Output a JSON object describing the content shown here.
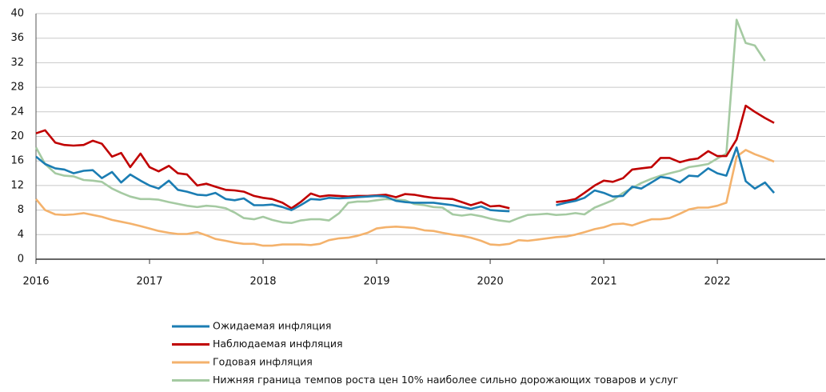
{
  "chart_data": {
    "type": "line",
    "x": [
      2016,
      2016.08,
      2016.17,
      2016.25,
      2016.33,
      2016.42,
      2016.5,
      2016.58,
      2016.67,
      2016.75,
      2016.83,
      2016.92,
      2017,
      2017.08,
      2017.17,
      2017.25,
      2017.33,
      2017.42,
      2017.5,
      2017.58,
      2017.67,
      2017.75,
      2017.83,
      2017.92,
      2018,
      2018.08,
      2018.17,
      2018.25,
      2018.33,
      2018.42,
      2018.5,
      2018.58,
      2018.67,
      2018.75,
      2018.83,
      2018.92,
      2019,
      2019.08,
      2019.17,
      2019.25,
      2019.33,
      2019.42,
      2019.5,
      2019.58,
      2019.67,
      2019.75,
      2019.83,
      2019.92,
      2020,
      2020.08,
      2020.17,
      2020.25,
      2020.33,
      2020.42,
      2020.5,
      2020.58,
      2020.67,
      2020.75,
      2020.83,
      2020.92,
      2021,
      2021.08,
      2021.17,
      2021.25,
      2021.33,
      2021.42,
      2021.5,
      2021.58,
      2021.67,
      2021.75,
      2021.83,
      2021.92,
      2022,
      2022.08,
      2022.17,
      2022.25,
      2022.33,
      2022.42,
      2022.5
    ],
    "series": [
      {
        "name": "Ожидаемая инфляция",
        "color": "#1b7db3",
        "values": [
          16.7,
          15.5,
          14.8,
          14.6,
          14,
          14.4,
          14.5,
          13.2,
          14.2,
          12.5,
          13.8,
          12.8,
          12,
          11.5,
          12.8,
          11.3,
          11,
          10.5,
          10.4,
          10.8,
          9.8,
          9.6,
          9.9,
          8.8,
          8.8,
          8.9,
          8.5,
          8,
          8.8,
          9.8,
          9.7,
          10,
          9.9,
          10,
          10.1,
          10.2,
          10.3,
          10.2,
          9.5,
          9.3,
          9.2,
          9.2,
          9.2,
          9,
          8.8,
          8.5,
          8.2,
          8.6,
          8,
          7.9,
          7.8,
          null,
          null,
          null,
          null,
          8.8,
          9.2,
          9.5,
          10,
          11.2,
          10.8,
          10.2,
          10.3,
          11.8,
          11.5,
          12.5,
          13.4,
          13.2,
          12.5,
          13.6,
          13.5,
          14.8,
          14,
          13.6,
          18.2,
          12.7,
          11.5,
          12.5,
          10.8
        ]
      },
      {
        "name": "Наблюдаемая инфляция",
        "color": "#c00000",
        "values": [
          20.5,
          21,
          19,
          18.6,
          18.5,
          18.6,
          19.3,
          18.8,
          16.7,
          17.3,
          15,
          17.2,
          15,
          14.3,
          15.2,
          14,
          13.8,
          12,
          12.3,
          11.8,
          11.3,
          11.2,
          11,
          10.3,
          10,
          9.8,
          9.2,
          8.3,
          9.3,
          10.7,
          10.2,
          10.4,
          10.3,
          10.2,
          10.3,
          10.3,
          10.4,
          10.5,
          10.1,
          10.6,
          10.5,
          10.2,
          10,
          9.9,
          9.8,
          9.3,
          8.8,
          9.3,
          8.6,
          8.7,
          8.3,
          null,
          null,
          null,
          null,
          9.3,
          9.5,
          9.8,
          10.8,
          12,
          12.8,
          12.6,
          13.2,
          14.6,
          14.8,
          15,
          16.5,
          16.5,
          15.8,
          16.2,
          16.4,
          17.6,
          16.8,
          16.8,
          19.5,
          25,
          24,
          23,
          22.2
        ]
      },
      {
        "name": "Годовая инфляция",
        "color": "#f4b26c",
        "values": [
          9.8,
          8,
          7.3,
          7.2,
          7.3,
          7.5,
          7.2,
          6.9,
          6.4,
          6.1,
          5.8,
          5.4,
          5,
          4.6,
          4.3,
          4.1,
          4.1,
          4.4,
          3.9,
          3.3,
          3,
          2.7,
          2.5,
          2.5,
          2.2,
          2.2,
          2.4,
          2.4,
          2.4,
          2.3,
          2.5,
          3.1,
          3.4,
          3.5,
          3.8,
          4.3,
          5,
          5.2,
          5.3,
          5.2,
          5.1,
          4.7,
          4.6,
          4.3,
          4,
          3.8,
          3.5,
          3,
          2.4,
          2.3,
          2.5,
          3.1,
          3,
          3.2,
          3.4,
          3.6,
          3.7,
          4,
          4.4,
          4.9,
          5.2,
          5.7,
          5.8,
          5.5,
          6,
          6.5,
          6.5,
          6.7,
          7.4,
          8.1,
          8.4,
          8.4,
          8.7,
          9.2,
          16.7,
          17.8,
          17.1,
          16.5,
          15.9
        ]
      },
      {
        "name": "Нижняя граница темпов роста цен 10% наиболее сильно дорожающих товаров и услуг",
        "color": "#a5caa2",
        "values": [
          18.2,
          15.5,
          14,
          13.6,
          13.5,
          12.9,
          12.8,
          12.6,
          11.5,
          10.8,
          10.2,
          9.8,
          9.8,
          9.7,
          9.3,
          9,
          8.7,
          8.5,
          8.7,
          8.6,
          8.3,
          7.6,
          6.7,
          6.5,
          6.9,
          6.4,
          6,
          5.9,
          6.3,
          6.5,
          6.5,
          6.3,
          7.5,
          9.2,
          9.4,
          9.4,
          9.6,
          9.8,
          9.7,
          9.6,
          9,
          8.8,
          8.5,
          8.4,
          7.3,
          7.1,
          7.3,
          7,
          6.6,
          6.3,
          6.1,
          6.7,
          7.2,
          7.3,
          7.4,
          7.2,
          7.3,
          7.5,
          7.3,
          8.4,
          9,
          9.6,
          10.8,
          11.6,
          12.4,
          13.1,
          13.6,
          14,
          14.4,
          15,
          15.2,
          15.5,
          16.4,
          17.2,
          39,
          35.2,
          34.8,
          32.3,
          null
        ]
      }
    ],
    "xlim": [
      2016,
      2022.95
    ],
    "xticks": [
      2016,
      2017,
      2018,
      2019,
      2020,
      2021,
      2022
    ],
    "ylim": [
      0,
      40
    ],
    "yticks": [
      0,
      4,
      8,
      12,
      16,
      20,
      24,
      28,
      32,
      36,
      40
    ],
    "grid": true
  }
}
